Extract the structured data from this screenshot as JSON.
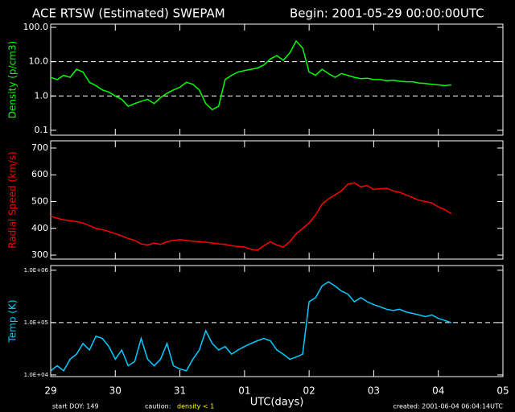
{
  "chart_data": [
    {
      "type": "line",
      "title": "ACE RTSW (Estimated) SWEPAM",
      "subtitle": "Begin: 2001-05-29 00:00:00UTC",
      "ylabel": "Density (p/cm3)",
      "log_y": true,
      "color": "#00ff00",
      "xlim": [
        0,
        7
      ],
      "ylim": [
        0.072,
        124
      ],
      "yticks": [
        {
          "value": 100,
          "label": "100.0"
        },
        {
          "value": 10,
          "label": "10.0"
        },
        {
          "value": 1,
          "label": "1.0"
        },
        0.1
      ],
      "dashed_lines": [
        10,
        1
      ],
      "x": [
        0,
        0.1,
        0.2,
        0.3,
        0.4,
        0.5,
        0.6,
        0.7,
        0.8,
        0.9,
        1,
        1.1,
        1.2,
        1.3,
        1.4,
        1.5,
        1.6,
        1.7,
        1.8,
        1.9,
        2,
        2.1,
        2.2,
        2.3,
        2.4,
        2.5,
        2.6,
        2.7,
        2.8,
        2.9,
        3,
        3.1,
        3.2,
        3.3,
        3.4,
        3.5,
        3.6,
        3.7,
        3.8,
        3.9,
        4,
        4.1,
        4.2,
        4.3,
        4.4,
        4.5,
        4.6,
        4.7,
        4.8,
        4.9,
        5,
        5.1,
        5.2,
        5.3,
        5.4,
        5.5,
        5.6,
        5.7,
        5.8,
        5.9,
        6,
        6.1,
        6.2
      ],
      "values": [
        3.5,
        3,
        4,
        3.5,
        6,
        5,
        2.5,
        2,
        1.5,
        1.3,
        1,
        0.8,
        0.5,
        0.6,
        0.7,
        0.8,
        0.6,
        0.9,
        1.2,
        1.5,
        1.8,
        2.5,
        2.2,
        1.5,
        0.6,
        0.4,
        0.5,
        3,
        4,
        5,
        5.5,
        6,
        6.5,
        8,
        12,
        15,
        11,
        18,
        40,
        25,
        5,
        4,
        6,
        4.5,
        3.5,
        4.5,
        4,
        3.5,
        3.2,
        3.3,
        3,
        3,
        2.8,
        2.9,
        2.7,
        2.6,
        2.6,
        2.4,
        2.3,
        2.2,
        2.1,
        2,
        2.1
      ]
    },
    {
      "type": "line",
      "ylabel": "Radial Speed (km/s)",
      "log_y": false,
      "color": "#ff0000",
      "xlim": [
        0,
        7
      ],
      "ylim": [
        285,
        727
      ],
      "yticks": [
        700,
        600,
        500,
        400,
        300
      ],
      "x": [
        0,
        0.1,
        0.2,
        0.3,
        0.4,
        0.5,
        0.6,
        0.7,
        0.8,
        0.9,
        1,
        1.1,
        1.2,
        1.3,
        1.4,
        1.5,
        1.6,
        1.7,
        1.8,
        1.9,
        2,
        2.1,
        2.2,
        2.3,
        2.4,
        2.5,
        2.6,
        2.7,
        2.8,
        2.9,
        3,
        3.1,
        3.2,
        3.3,
        3.4,
        3.5,
        3.6,
        3.7,
        3.8,
        3.9,
        4,
        4.1,
        4.2,
        4.3,
        4.4,
        4.5,
        4.6,
        4.7,
        4.8,
        4.9,
        5,
        5.1,
        5.2,
        5.3,
        5.4,
        5.5,
        5.6,
        5.7,
        5.8,
        5.9,
        6,
        6.1,
        6.2
      ],
      "values": [
        445,
        438,
        432,
        428,
        425,
        420,
        410,
        400,
        395,
        388,
        380,
        372,
        362,
        355,
        342,
        338,
        345,
        340,
        350,
        355,
        358,
        355,
        352,
        350,
        348,
        345,
        342,
        340,
        335,
        332,
        330,
        322,
        318,
        335,
        350,
        338,
        330,
        350,
        380,
        400,
        420,
        450,
        490,
        510,
        525,
        540,
        565,
        570,
        555,
        560,
        545,
        548,
        550,
        540,
        535,
        525,
        515,
        505,
        500,
        495,
        480,
        470,
        455
      ]
    },
    {
      "type": "line",
      "ylabel": "Temp (K)",
      "log_y": true,
      "color": "#00ccff",
      "xlim": [
        0,
        7
      ],
      "ylim": [
        9300,
        1230000
      ],
      "yticks": [
        {
          "value": 1000000,
          "label": "1.0E+06"
        },
        {
          "value": 100000,
          "label": "1.0E+05"
        },
        {
          "value": 10000,
          "label": "1.0E+04"
        }
      ],
      "dashed_lines": [
        100000
      ],
      "xlabel": "UTC(days)",
      "xticks": [
        {
          "value": 0,
          "label": "29"
        },
        {
          "value": 1,
          "label": "30"
        },
        {
          "value": 2,
          "label": "31"
        },
        {
          "value": 3,
          "label": "01"
        },
        {
          "value": 4,
          "label": "02"
        },
        {
          "value": 5,
          "label": "03"
        },
        {
          "value": 6,
          "label": "04"
        },
        {
          "value": 7,
          "label": "05"
        }
      ],
      "x": [
        0,
        0.1,
        0.2,
        0.3,
        0.4,
        0.5,
        0.6,
        0.7,
        0.8,
        0.9,
        1,
        1.1,
        1.2,
        1.3,
        1.4,
        1.5,
        1.6,
        1.7,
        1.8,
        1.9,
        2,
        2.1,
        2.2,
        2.3,
        2.4,
        2.5,
        2.6,
        2.7,
        2.8,
        2.9,
        3,
        3.1,
        3.2,
        3.3,
        3.4,
        3.5,
        3.6,
        3.7,
        3.8,
        3.9,
        4,
        4.1,
        4.2,
        4.3,
        4.4,
        4.5,
        4.6,
        4.7,
        4.8,
        4.9,
        5,
        5.1,
        5.2,
        5.3,
        5.4,
        5.5,
        5.6,
        5.7,
        5.8,
        5.9,
        6,
        6.1,
        6.2
      ],
      "values": [
        12000,
        15000,
        12000,
        20000,
        25000,
        40000,
        30000,
        55000,
        50000,
        35000,
        20000,
        30000,
        15000,
        18000,
        50000,
        20000,
        15000,
        20000,
        40000,
        15000,
        13000,
        12000,
        20000,
        30000,
        70000,
        40000,
        30000,
        35000,
        25000,
        30000,
        35000,
        40000,
        45000,
        50000,
        45000,
        30000,
        25000,
        20000,
        22000,
        25000,
        250000,
        300000,
        500000,
        600000,
        500000,
        400000,
        350000,
        250000,
        300000,
        250000,
        220000,
        200000,
        180000,
        170000,
        180000,
        160000,
        150000,
        140000,
        130000,
        140000,
        120000,
        110000,
        100000
      ]
    }
  ],
  "footer": {
    "start": "start DOY: 149",
    "caution": "caution:",
    "caution_note": "density < 1",
    "created": "created: 2001-06-04 06:04:14UTC"
  }
}
